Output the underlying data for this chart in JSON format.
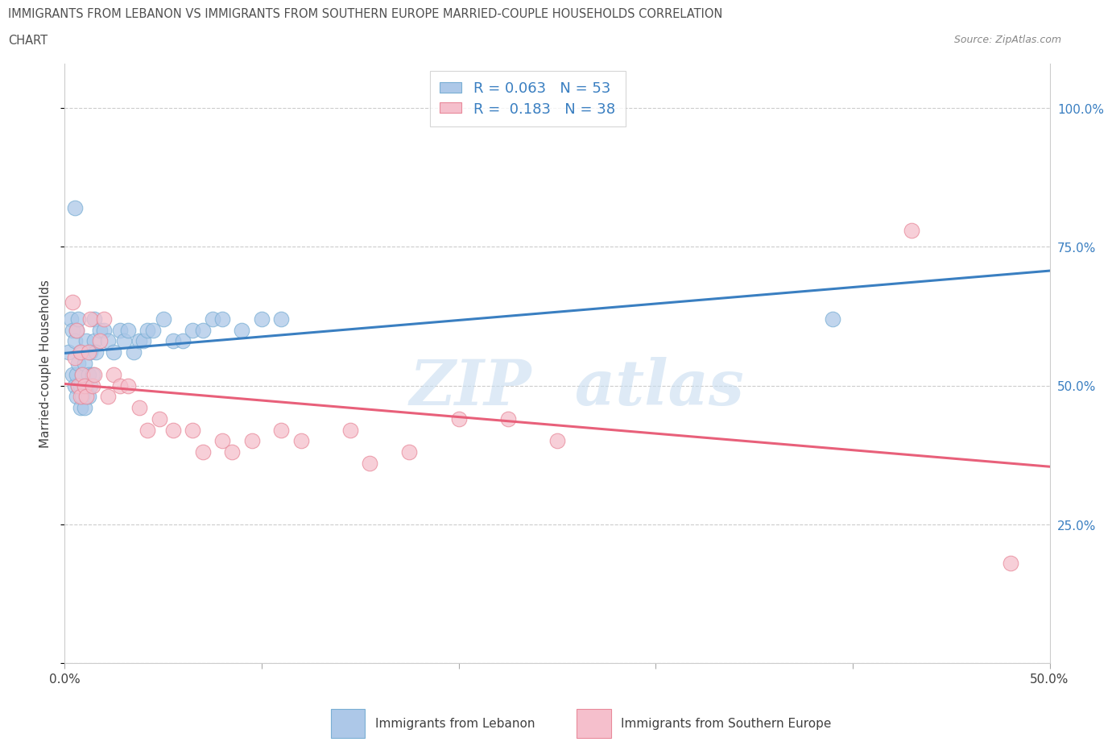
{
  "title_line1": "IMMIGRANTS FROM LEBANON VS IMMIGRANTS FROM SOUTHERN EUROPE MARRIED-COUPLE HOUSEHOLDS CORRELATION",
  "title_line2": "CHART",
  "source": "Source: ZipAtlas.com",
  "ylabel": "Married-couple Households",
  "xlim": [
    0.0,
    0.5
  ],
  "ylim": [
    0.0,
    1.08
  ],
  "ytick_positions": [
    0.0,
    0.25,
    0.5,
    0.75,
    1.0
  ],
  "yticklabels_right": [
    "",
    "25.0%",
    "50.0%",
    "75.0%",
    "100.0%"
  ],
  "xtick_positions": [
    0.0,
    0.1,
    0.2,
    0.3,
    0.4,
    0.5
  ],
  "xticklabels": [
    "0.0%",
    "",
    "",
    "",
    "",
    "50.0%"
  ],
  "blue_R": 0.063,
  "blue_N": 53,
  "pink_R": 0.183,
  "pink_N": 38,
  "blue_color": "#adc8e8",
  "blue_edge": "#7aafd4",
  "pink_color": "#f5bfcc",
  "pink_edge": "#e8899a",
  "blue_line_color": "#3a7fc1",
  "pink_line_color": "#e8607a",
  "tick_label_color": "#3a7fc1",
  "legend_label_blue": "Immigrants from Lebanon",
  "legend_label_pink": "Immigrants from Southern Europe",
  "blue_x": [
    0.002,
    0.003,
    0.004,
    0.004,
    0.005,
    0.005,
    0.006,
    0.006,
    0.006,
    0.007,
    0.007,
    0.007,
    0.008,
    0.008,
    0.008,
    0.009,
    0.009,
    0.01,
    0.01,
    0.011,
    0.011,
    0.012,
    0.012,
    0.013,
    0.013,
    0.014,
    0.015,
    0.015,
    0.016,
    0.018,
    0.02,
    0.022,
    0.025,
    0.028,
    0.03,
    0.032,
    0.035,
    0.038,
    0.04,
    0.042,
    0.045,
    0.05,
    0.055,
    0.06,
    0.065,
    0.07,
    0.075,
    0.08,
    0.09,
    0.1,
    0.11,
    0.39,
    0.005
  ],
  "blue_y": [
    0.56,
    0.62,
    0.52,
    0.6,
    0.5,
    0.58,
    0.48,
    0.52,
    0.6,
    0.5,
    0.54,
    0.62,
    0.46,
    0.5,
    0.56,
    0.48,
    0.52,
    0.46,
    0.54,
    0.5,
    0.58,
    0.48,
    0.52,
    0.5,
    0.56,
    0.52,
    0.58,
    0.62,
    0.56,
    0.6,
    0.6,
    0.58,
    0.56,
    0.6,
    0.58,
    0.6,
    0.56,
    0.58,
    0.58,
    0.6,
    0.6,
    0.62,
    0.58,
    0.58,
    0.6,
    0.6,
    0.62,
    0.62,
    0.6,
    0.62,
    0.62,
    0.62,
    0.82
  ],
  "pink_x": [
    0.004,
    0.005,
    0.006,
    0.007,
    0.008,
    0.008,
    0.009,
    0.01,
    0.011,
    0.012,
    0.013,
    0.014,
    0.015,
    0.018,
    0.02,
    0.022,
    0.025,
    0.028,
    0.032,
    0.038,
    0.042,
    0.048,
    0.055,
    0.065,
    0.07,
    0.08,
    0.085,
    0.095,
    0.11,
    0.12,
    0.145,
    0.155,
    0.175,
    0.2,
    0.225,
    0.25,
    0.43,
    0.48
  ],
  "pink_y": [
    0.65,
    0.55,
    0.6,
    0.5,
    0.48,
    0.56,
    0.52,
    0.5,
    0.48,
    0.56,
    0.62,
    0.5,
    0.52,
    0.58,
    0.62,
    0.48,
    0.52,
    0.5,
    0.5,
    0.46,
    0.42,
    0.44,
    0.42,
    0.42,
    0.38,
    0.4,
    0.38,
    0.4,
    0.42,
    0.4,
    0.42,
    0.36,
    0.38,
    0.44,
    0.44,
    0.4,
    0.78,
    0.18
  ],
  "watermark_text": "ZIP  atlas",
  "watermark_color": "#c8ddf0",
  "background_color": "#ffffff",
  "grid_color": "#cccccc",
  "title_color": "#505050",
  "source_color": "#888888"
}
